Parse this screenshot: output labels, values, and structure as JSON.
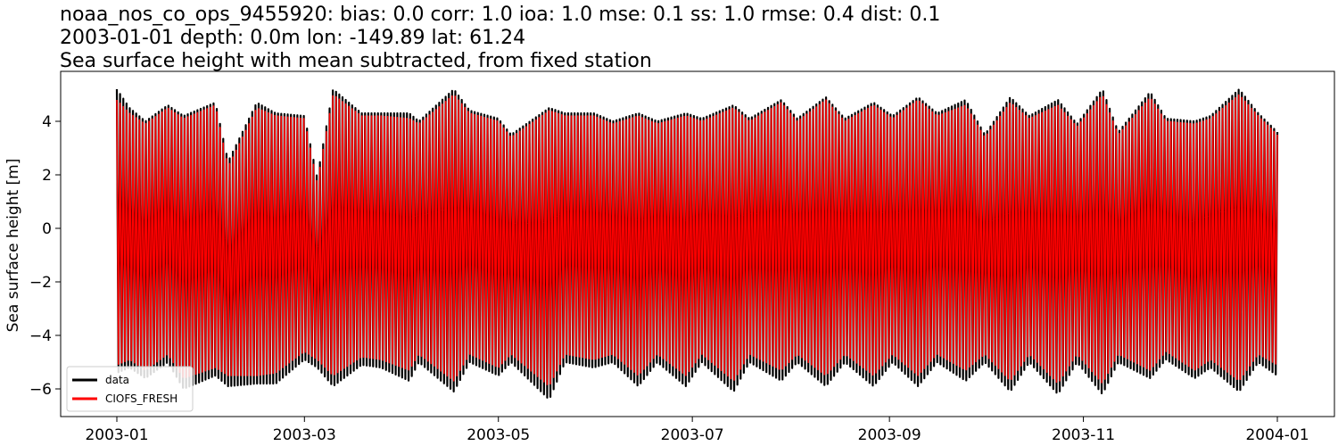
{
  "chart_data": {
    "type": "line",
    "title_lines": [
      "noaa_nos_co_ops_9455920: bias: 0.0  corr: 1.0  ioa: 1.0  mse: 0.1  ss: 1.0  rmse: 0.4  dist: 0.1",
      "2003-01-01 depth: 0.0m lon: -149.89 lat: 61.24",
      "Sea surface height with mean subtracted, from fixed station"
    ],
    "xlabel": "",
    "ylabel": "Sea surface height [m]",
    "xlim": [
      "2003-01-01",
      "2004-01-01"
    ],
    "ylim": [
      -7,
      5.8
    ],
    "x_ticks": [
      "2003-01",
      "2003-03",
      "2003-05",
      "2003-07",
      "2003-09",
      "2003-11",
      "2004-01"
    ],
    "y_ticks": [
      -6,
      -4,
      -2,
      0,
      2,
      4
    ],
    "legend": {
      "placement": "lower-left",
      "entries": [
        "data",
        "CIOFS_FRESH"
      ]
    },
    "grid": false,
    "series": [
      {
        "name": "data",
        "color": "#000000",
        "x": [
          "2003-01-01",
          "2003-01-05",
          "2003-01-10",
          "2003-01-17",
          "2003-01-22",
          "2003-02-01",
          "2003-02-05",
          "2003-02-14",
          "2003-02-20",
          "2003-03-01",
          "2003-03-05",
          "2003-03-10",
          "2003-03-19",
          "2003-03-25",
          "2003-04-03",
          "2003-04-06",
          "2003-04-17",
          "2003-04-22",
          "2003-05-01",
          "2003-05-05",
          "2003-05-17",
          "2003-05-22",
          "2003-05-31",
          "2003-06-06",
          "2003-06-14",
          "2003-06-20",
          "2003-06-29",
          "2003-07-04",
          "2003-07-14",
          "2003-07-19",
          "2003-07-29",
          "2003-08-03",
          "2003-08-12",
          "2003-08-18",
          "2003-08-27",
          "2003-09-02",
          "2003-09-10",
          "2003-09-16",
          "2003-09-25",
          "2003-10-01",
          "2003-10-09",
          "2003-10-15",
          "2003-10-24",
          "2003-10-30",
          "2003-11-07",
          "2003-11-12",
          "2003-11-22",
          "2003-11-27",
          "2003-12-06",
          "2003-12-11",
          "2003-12-20",
          "2003-12-26",
          "2004-01-01"
        ],
        "max": [
          5.2,
          4.5,
          4.0,
          4.6,
          4.2,
          4.7,
          2.5,
          4.7,
          4.3,
          4.2,
          1.9,
          5.2,
          4.3,
          4.3,
          4.3,
          4.0,
          5.2,
          4.4,
          4.1,
          3.5,
          4.5,
          4.3,
          4.3,
          4.0,
          4.3,
          4.0,
          4.3,
          4.1,
          4.6,
          4.1,
          4.8,
          4.1,
          4.9,
          4.1,
          4.7,
          4.2,
          4.9,
          4.3,
          4.8,
          3.5,
          4.9,
          4.2,
          4.8,
          3.9,
          5.2,
          3.6,
          5.1,
          4.1,
          4.0,
          4.2,
          5.2,
          4.3,
          3.6
        ],
        "min": [
          -5.4,
          -5.2,
          -5.6,
          -5.0,
          -6.0,
          -5.5,
          -5.9,
          -5.8,
          -5.8,
          -4.9,
          -5.2,
          -5.9,
          -5.1,
          -5.2,
          -5.7,
          -5.0,
          -6.1,
          -5.0,
          -5.5,
          -5.0,
          -6.4,
          -5.0,
          -5.2,
          -5.0,
          -5.9,
          -5.0,
          -5.9,
          -5.0,
          -6.1,
          -5.0,
          -5.7,
          -5.0,
          -5.9,
          -5.0,
          -5.9,
          -5.0,
          -5.9,
          -5.0,
          -5.7,
          -5.0,
          -6.1,
          -5.0,
          -6.2,
          -5.0,
          -6.2,
          -5.0,
          -5.6,
          -4.9,
          -5.6,
          -5.2,
          -6.1,
          -5.0,
          -5.5
        ]
      },
      {
        "name": "CIOFS_FRESH",
        "color": "#ff0000",
        "x": [
          "2003-01-01",
          "2003-01-05",
          "2003-01-10",
          "2003-01-17",
          "2003-01-22",
          "2003-02-01",
          "2003-02-05",
          "2003-02-14",
          "2003-02-20",
          "2003-03-01",
          "2003-03-05",
          "2003-03-10",
          "2003-03-19",
          "2003-03-25",
          "2003-04-03",
          "2003-04-06",
          "2003-04-17",
          "2003-04-22",
          "2003-05-01",
          "2003-05-05",
          "2003-05-17",
          "2003-05-22",
          "2003-05-31",
          "2003-06-06",
          "2003-06-14",
          "2003-06-20",
          "2003-06-29",
          "2003-07-04",
          "2003-07-14",
          "2003-07-19",
          "2003-07-29",
          "2003-08-03",
          "2003-08-12",
          "2003-08-18",
          "2003-08-27",
          "2003-09-02",
          "2003-09-10",
          "2003-09-16",
          "2003-09-25",
          "2003-10-01",
          "2003-10-09",
          "2003-10-15",
          "2003-10-24",
          "2003-10-30",
          "2003-11-07",
          "2003-11-12",
          "2003-11-22",
          "2003-11-27",
          "2003-12-06",
          "2003-12-11",
          "2003-12-20",
          "2003-12-26",
          "2004-01-01"
        ],
        "max": [
          4.8,
          4.3,
          3.9,
          4.5,
          4.1,
          4.6,
          2.3,
          4.5,
          4.2,
          4.1,
          1.7,
          5.0,
          4.2,
          4.2,
          4.1,
          3.9,
          5.0,
          4.3,
          4.0,
          3.4,
          4.4,
          4.2,
          4.2,
          3.9,
          4.2,
          3.9,
          4.2,
          4.0,
          4.5,
          4.0,
          4.7,
          4.0,
          4.8,
          4.0,
          4.6,
          4.1,
          4.8,
          4.2,
          4.6,
          3.4,
          4.7,
          4.1,
          4.6,
          3.8,
          5.0,
          3.5,
          4.9,
          4.0,
          3.9,
          4.1,
          5.0,
          4.2,
          3.5
        ],
        "min": [
          -5.1,
          -4.9,
          -5.3,
          -4.7,
          -5.6,
          -5.2,
          -5.5,
          -5.5,
          -5.4,
          -4.6,
          -4.9,
          -5.5,
          -4.8,
          -4.9,
          -5.3,
          -4.7,
          -5.7,
          -4.7,
          -5.2,
          -4.7,
          -5.9,
          -4.7,
          -4.9,
          -4.7,
          -5.5,
          -4.7,
          -5.5,
          -4.7,
          -5.7,
          -4.7,
          -5.3,
          -4.7,
          -5.5,
          -4.7,
          -5.5,
          -4.7,
          -5.5,
          -4.7,
          -5.3,
          -4.7,
          -5.7,
          -4.7,
          -5.8,
          -4.7,
          -5.8,
          -4.7,
          -5.3,
          -4.6,
          -5.3,
          -4.9,
          -5.7,
          -4.7,
          -5.1
        ]
      }
    ]
  }
}
